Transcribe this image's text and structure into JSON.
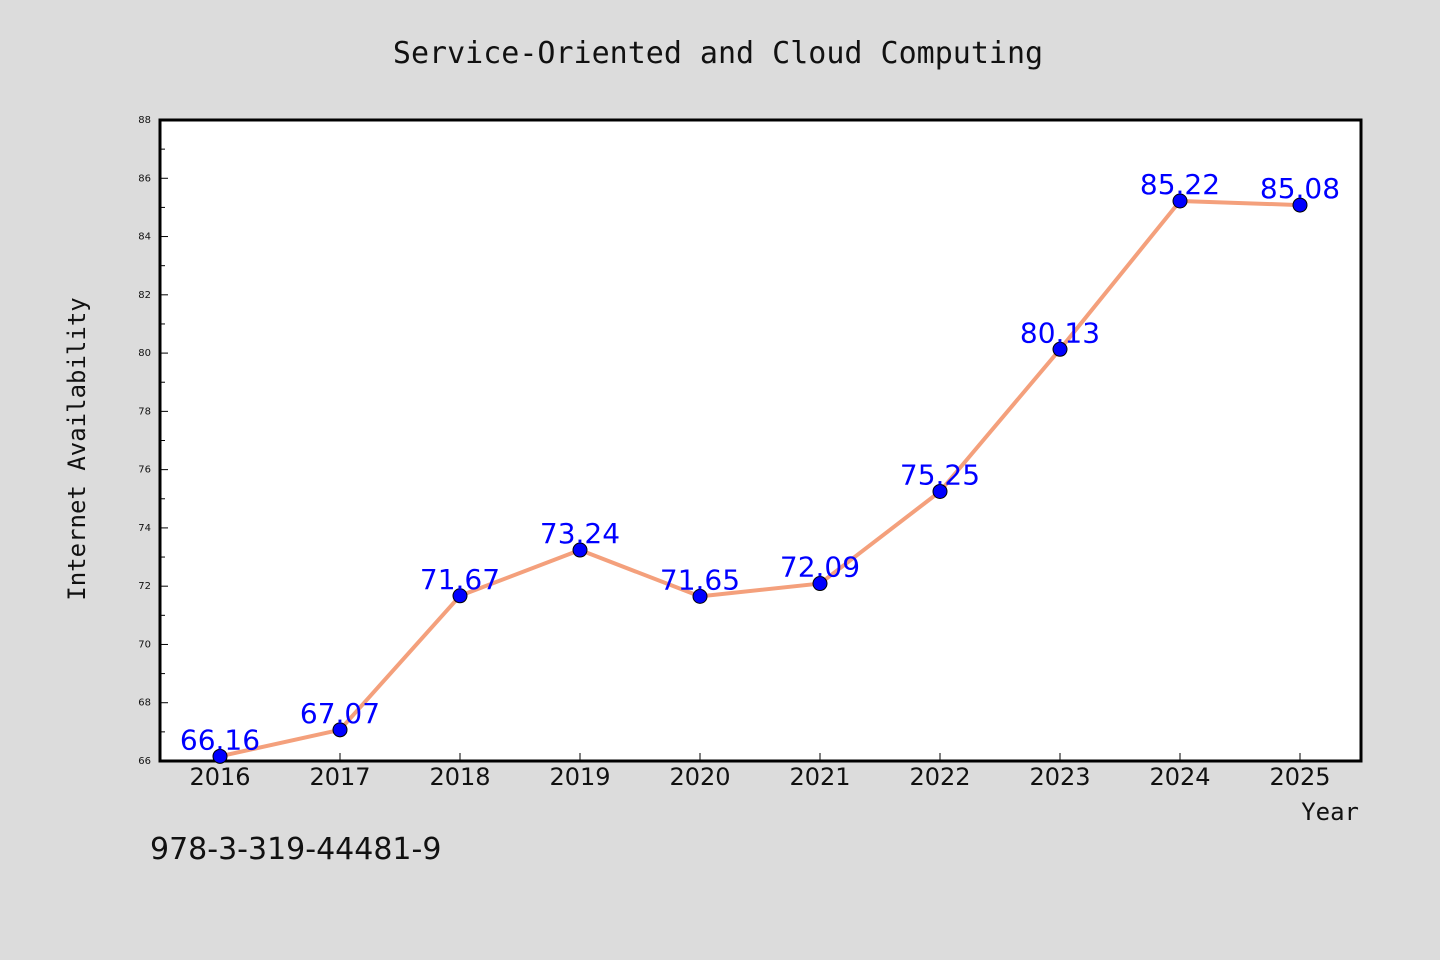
{
  "chart_data": {
    "type": "line",
    "title": "Service-Oriented and Cloud Computing",
    "xlabel": "Year",
    "ylabel": "Internet Availability",
    "categories": [
      "2016",
      "2017",
      "2018",
      "2019",
      "2020",
      "2021",
      "2022",
      "2023",
      "2024",
      "2025"
    ],
    "series": [
      {
        "values": [
          66.16,
          67.07,
          71.67,
          73.24,
          71.65,
          72.09,
          75.25,
          80.13,
          85.22,
          85.08
        ],
        "labels": [
          "66.16",
          "67.07",
          "71.67",
          "73.24",
          "71.65",
          "72.09",
          "75.25",
          "80.13",
          "85.22",
          "85.08"
        ]
      }
    ],
    "ylim": [
      66,
      88
    ],
    "yticks": [
      "66",
      "68",
      "70",
      "72",
      "74",
      "76",
      "78",
      "80",
      "82",
      "84",
      "86",
      "88"
    ],
    "grid": false,
    "colors": {
      "line": "#f4a07c",
      "marker": "#0000ff",
      "label": "#0000ff",
      "plot_background": "#ffffff",
      "figure_background": "#dcdcdc"
    }
  },
  "footer": {
    "isbn": "978-3-319-44481-9"
  }
}
